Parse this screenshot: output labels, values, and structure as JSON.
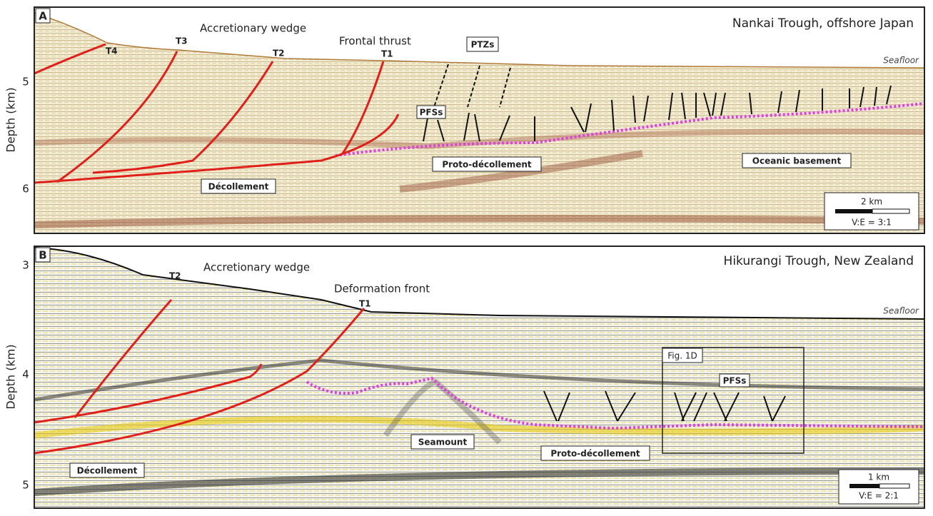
{
  "panels": [
    {
      "label": "A",
      "title": "Nankai Trough, offshore Japan",
      "y_axis_label": "Depth (km)",
      "yticks": [
        5,
        6
      ],
      "annotations": [
        "Accretionary wedge",
        "Frontal thrust",
        "T4",
        "T3",
        "T2",
        "T1",
        "PTZs",
        "Seafloor",
        "PFSs",
        "Proto-décollement",
        "Décollement",
        "Oceanic basement"
      ],
      "scale_bar": "2 km",
      "vertical_exaggeration": "V:E = 3:1"
    },
    {
      "label": "B",
      "title": "Hikurangi Trough, New Zealand",
      "y_axis_label": "Depth (km)",
      "yticks": [
        3,
        4,
        5
      ],
      "annotations": [
        "Accretionary wedge",
        "Deformation front",
        "T2",
        "T1",
        "Seafloor",
        "Fig. 1D",
        "PFSs",
        "Seamount",
        "Proto-décollement",
        "Décollement"
      ],
      "scale_bar": "1 km",
      "vertical_exaggeration": "V:E = 2:1"
    }
  ]
}
